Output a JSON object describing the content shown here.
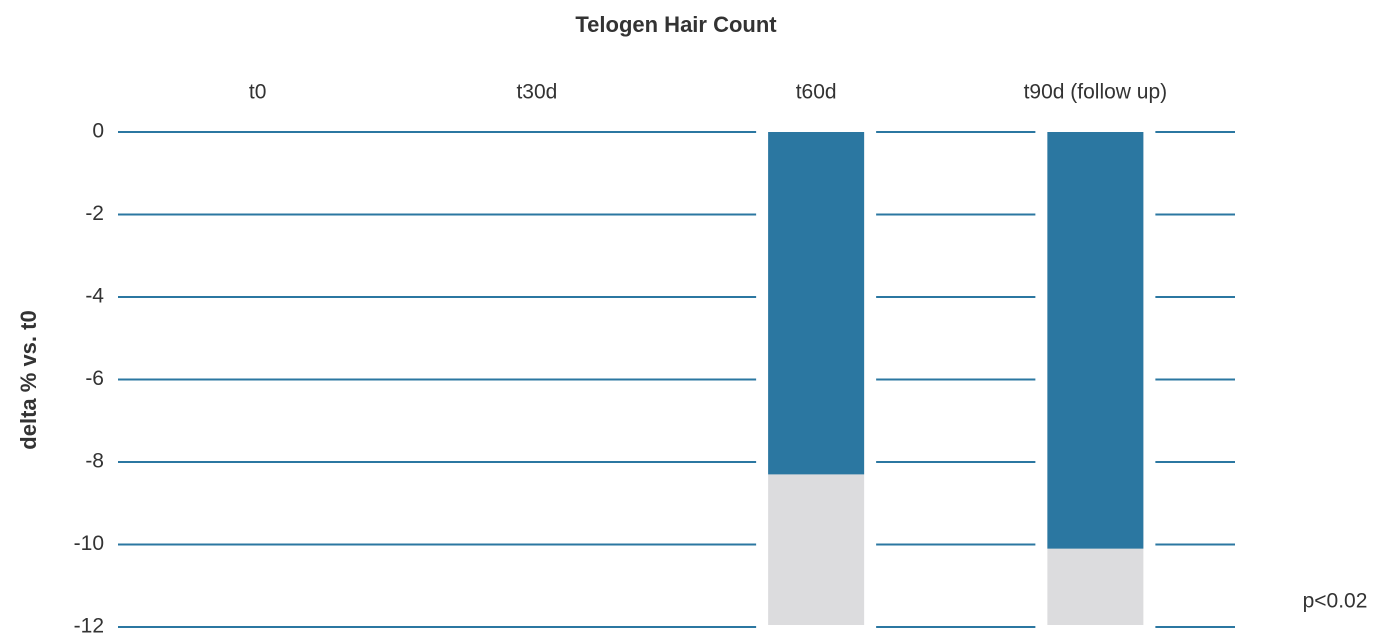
{
  "chart_data": {
    "type": "bar",
    "title": "Telogen Hair Count",
    "y_label": "delta % vs. t0",
    "annotation": "p<0.02",
    "categories": [
      "t0",
      "t30d",
      "t60d",
      "t90d (follow up)"
    ],
    "values": [
      null,
      null,
      -8.3,
      -10.1
    ],
    "color": "#2b77a1",
    "track_color": "#dcdcde",
    "grid_color": "#2b77a1",
    "ylim": [
      0,
      -12
    ],
    "yticks": [
      0,
      -2,
      -4,
      -6,
      -8,
      -10,
      -12
    ],
    "grid": true
  }
}
